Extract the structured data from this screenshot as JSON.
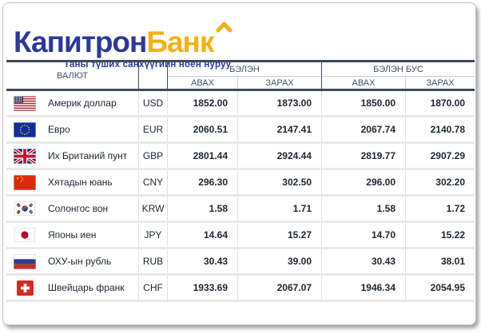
{
  "brand": {
    "logo_part1": "Капитрон",
    "logo_part2": "Банк",
    "tagline": "Таны түших санхүүгийн ноён нуруу",
    "colors": {
      "blue": "#2e3896",
      "gold": "#f2b117"
    }
  },
  "table": {
    "headers": {
      "currency": "ВАЛЮТ",
      "cash": "БЭЛЭН",
      "non_cash": "БЭЛЭН БУС",
      "buy": "АВАХ",
      "sell": "ЗАРАХ"
    },
    "colors": {
      "header_border": "#3e4b5e",
      "header_text": "#44546a",
      "row_separator": "#e9e9e9"
    },
    "rows": [
      {
        "flag": "us-flag",
        "name": "Америк доллар",
        "code": "USD",
        "cash_buy": "1852.00",
        "cash_sell": "1873.00",
        "noncash_buy": "1850.00",
        "noncash_sell": "1870.00"
      },
      {
        "flag": "eu-flag",
        "name": "Евро",
        "code": "EUR",
        "cash_buy": "2060.51",
        "cash_sell": "2147.41",
        "noncash_buy": "2067.74",
        "noncash_sell": "2140.78"
      },
      {
        "flag": "uk-flag",
        "name": "Их Британий пунт",
        "code": "GBP",
        "cash_buy": "2801.44",
        "cash_sell": "2924.44",
        "noncash_buy": "2819.77",
        "noncash_sell": "2907.29"
      },
      {
        "flag": "china-flag",
        "name": "Хятадын юань",
        "code": "CNY",
        "cash_buy": "296.30",
        "cash_sell": "302.50",
        "noncash_buy": "296.00",
        "noncash_sell": "302.20"
      },
      {
        "flag": "south-korea-flag",
        "name": "Солонгос вон",
        "code": "KRW",
        "cash_buy": "1.58",
        "cash_sell": "1.71",
        "noncash_buy": "1.58",
        "noncash_sell": "1.72"
      },
      {
        "flag": "japan-flag",
        "name": "Японы иен",
        "code": "JPY",
        "cash_buy": "14.64",
        "cash_sell": "15.27",
        "noncash_buy": "14.70",
        "noncash_sell": "15.22"
      },
      {
        "flag": "russia-flag",
        "name": "ОХУ-ын рубль",
        "code": "RUB",
        "cash_buy": "30.43",
        "cash_sell": "39.00",
        "noncash_buy": "30.43",
        "noncash_sell": "38.01"
      },
      {
        "flag": "switzerland-flag",
        "name": "Швейцарь франк",
        "code": "CHF",
        "cash_buy": "1933.69",
        "cash_sell": "2067.07",
        "noncash_buy": "1946.34",
        "noncash_sell": "2054.95"
      }
    ]
  }
}
